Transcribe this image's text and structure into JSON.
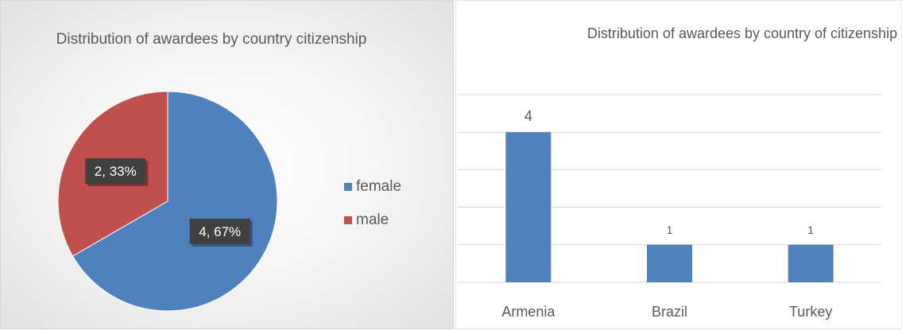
{
  "colors": {
    "female": "#4f81bd",
    "male": "#c0504d",
    "bar": "#4f81bd",
    "grid": "#d9d9d9",
    "text": "#595959"
  },
  "chart_data": [
    {
      "type": "pie",
      "title": "Distribution of awardees by country citizenship",
      "slices": [
        {
          "name": "female",
          "value": 4,
          "label": "4, 67%"
        },
        {
          "name": "male",
          "value": 2,
          "label": "2, 33%"
        }
      ],
      "legend": "right"
    },
    {
      "type": "bar",
      "title": "Distribution of awardees by country of citizenship",
      "categories": [
        "Armenia",
        "Brazil",
        "Turkey"
      ],
      "values": [
        4,
        1,
        1
      ],
      "ylim": [
        0,
        5
      ],
      "grid": true,
      "data_labels": [
        "4",
        "1",
        "1"
      ]
    }
  ]
}
